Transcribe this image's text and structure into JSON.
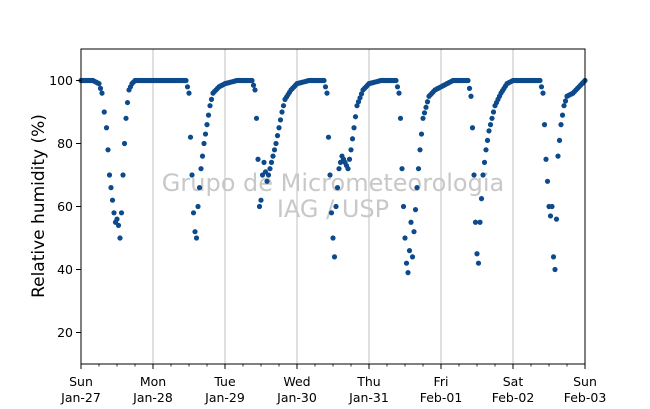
{
  "chart_data": {
    "type": "scatter",
    "title": "",
    "xlabel": "",
    "ylabel": "Relative humidity (%)",
    "ylim": [
      10,
      110
    ],
    "yticks": [
      20,
      40,
      60,
      80,
      100
    ],
    "xlim": [
      "2019-01-27 00:00",
      "2019-02-03 00:00"
    ],
    "xticks": [
      {
        "day": "Sun",
        "date": "Jan-27"
      },
      {
        "day": "Mon",
        "date": "Jan-28"
      },
      {
        "day": "Tue",
        "date": "Jan-29"
      },
      {
        "day": "Wed",
        "date": "Jan-30"
      },
      {
        "day": "Thu",
        "date": "Jan-31"
      },
      {
        "day": "Fri",
        "date": "Feb-01"
      },
      {
        "day": "Sat",
        "date": "Feb-02"
      },
      {
        "day": "Sun",
        "date": "Feb-03"
      }
    ],
    "grid": "vertical lines at day ticks",
    "marker_color": "#0d4a8c",
    "watermark": [
      "Grupo de Micrometeorologia",
      "IAG / USP"
    ],
    "series": [
      {
        "points": [
          [
            "2019-01-27 00:00",
            100
          ],
          [
            "2019-01-27 02:00",
            100
          ],
          [
            "2019-01-27 04:00",
            100
          ],
          [
            "2019-01-27 06:00",
            99
          ],
          [
            "2019-01-27 07:00",
            96
          ],
          [
            "2019-01-27 07:45",
            90
          ],
          [
            "2019-01-27 08:30",
            85
          ],
          [
            "2019-01-27 09:00",
            78
          ],
          [
            "2019-01-27 09:30",
            70
          ],
          [
            "2019-01-27 10:00",
            66
          ],
          [
            "2019-01-27 10:30",
            62
          ],
          [
            "2019-01-27 11:00",
            58
          ],
          [
            "2019-01-27 11:30",
            55
          ],
          [
            "2019-01-27 12:00",
            56
          ],
          [
            "2019-01-27 12:30",
            54
          ],
          [
            "2019-01-27 13:00",
            50
          ],
          [
            "2019-01-27 13:30",
            58
          ],
          [
            "2019-01-27 14:00",
            70
          ],
          [
            "2019-01-27 14:30",
            80
          ],
          [
            "2019-01-27 15:00",
            88
          ],
          [
            "2019-01-27 15:30",
            93
          ],
          [
            "2019-01-27 16:00",
            97
          ],
          [
            "2019-01-27 17:00",
            99
          ],
          [
            "2019-01-27 18:00",
            100
          ],
          [
            "2019-01-27 21:00",
            100
          ],
          [
            "2019-01-28 00:00",
            100
          ],
          [
            "2019-01-28 04:00",
            100
          ],
          [
            "2019-01-28 08:00",
            100
          ],
          [
            "2019-01-28 11:00",
            100
          ],
          [
            "2019-01-28 12:00",
            96
          ],
          [
            "2019-01-28 12:30",
            82
          ],
          [
            "2019-01-28 13:00",
            70
          ],
          [
            "2019-01-28 13:30",
            58
          ],
          [
            "2019-01-28 14:00",
            52
          ],
          [
            "2019-01-28 14:30",
            50
          ],
          [
            "2019-01-28 15:00",
            60
          ],
          [
            "2019-01-28 15:30",
            66
          ],
          [
            "2019-01-28 16:00",
            72
          ],
          [
            "2019-01-28 17:00",
            80
          ],
          [
            "2019-01-28 18:00",
            86
          ],
          [
            "2019-01-28 19:00",
            92
          ],
          [
            "2019-01-28 20:00",
            96
          ],
          [
            "2019-01-28 22:00",
            98
          ],
          [
            "2019-01-29 00:00",
            99
          ],
          [
            "2019-01-29 04:00",
            100
          ],
          [
            "2019-01-29 09:00",
            100
          ],
          [
            "2019-01-29 10:00",
            97
          ],
          [
            "2019-01-29 10:30",
            88
          ],
          [
            "2019-01-29 11:00",
            75
          ],
          [
            "2019-01-29 11:30",
            60
          ],
          [
            "2019-01-29 12:00",
            62
          ],
          [
            "2019-01-29 12:30",
            70
          ],
          [
            "2019-01-29 13:00",
            74
          ],
          [
            "2019-01-29 14:00",
            68
          ],
          [
            "2019-01-29 15:00",
            72
          ],
          [
            "2019-01-29 16:00",
            76
          ],
          [
            "2019-01-29 17:00",
            80
          ],
          [
            "2019-01-29 18:00",
            85
          ],
          [
            "2019-01-29 19:00",
            90
          ],
          [
            "2019-01-29 20:00",
            94
          ],
          [
            "2019-01-29 22:00",
            97
          ],
          [
            "2019-01-30 00:00",
            99
          ],
          [
            "2019-01-30 04:00",
            100
          ],
          [
            "2019-01-30 09:00",
            100
          ],
          [
            "2019-01-30 10:00",
            96
          ],
          [
            "2019-01-30 10:30",
            82
          ],
          [
            "2019-01-30 11:00",
            70
          ],
          [
            "2019-01-30 11:30",
            58
          ],
          [
            "2019-01-30 12:00",
            50
          ],
          [
            "2019-01-30 12:30",
            44
          ],
          [
            "2019-01-30 13:00",
            60
          ],
          [
            "2019-01-30 14:00",
            72
          ],
          [
            "2019-01-30 15:00",
            76
          ],
          [
            "2019-01-30 16:00",
            74
          ],
          [
            "2019-01-30 17:00",
            72
          ],
          [
            "2019-01-30 18:00",
            78
          ],
          [
            "2019-01-30 19:00",
            85
          ],
          [
            "2019-01-30 20:00",
            92
          ],
          [
            "2019-01-30 22:00",
            97
          ],
          [
            "2019-01-31 00:00",
            99
          ],
          [
            "2019-01-31 04:00",
            100
          ],
          [
            "2019-01-31 09:00",
            100
          ],
          [
            "2019-01-31 10:00",
            96
          ],
          [
            "2019-01-31 10:30",
            88
          ],
          [
            "2019-01-31 11:00",
            72
          ],
          [
            "2019-01-31 11:30",
            60
          ],
          [
            "2019-01-31 12:00",
            50
          ],
          [
            "2019-01-31 12:30",
            42
          ],
          [
            "2019-01-31 13:00",
            39
          ],
          [
            "2019-01-31 13:30",
            46
          ],
          [
            "2019-01-31 14:00",
            55
          ],
          [
            "2019-01-31 14:30",
            44
          ],
          [
            "2019-01-31 15:00",
            52
          ],
          [
            "2019-01-31 16:00",
            66
          ],
          [
            "2019-01-31 17:00",
            78
          ],
          [
            "2019-01-31 18:00",
            88
          ],
          [
            "2019-01-31 20:00",
            95
          ],
          [
            "2019-01-31 22:00",
            97
          ],
          [
            "2019-02-01 00:00",
            98
          ],
          [
            "2019-02-01 04:00",
            100
          ],
          [
            "2019-02-01 09:00",
            100
          ],
          [
            "2019-02-01 10:00",
            95
          ],
          [
            "2019-02-01 10:30",
            85
          ],
          [
            "2019-02-01 11:00",
            70
          ],
          [
            "2019-02-01 11:30",
            55
          ],
          [
            "2019-02-01 12:00",
            45
          ],
          [
            "2019-02-01 12:30",
            42
          ],
          [
            "2019-02-01 13:00",
            55
          ],
          [
            "2019-02-01 14:00",
            70
          ],
          [
            "2019-02-01 15:00",
            78
          ],
          [
            "2019-02-01 16:00",
            84
          ],
          [
            "2019-02-01 17:00",
            88
          ],
          [
            "2019-02-01 18:00",
            92
          ],
          [
            "2019-02-01 20:00",
            96
          ],
          [
            "2019-02-01 22:00",
            99
          ],
          [
            "2019-02-02 00:00",
            100
          ],
          [
            "2019-02-02 04:00",
            100
          ],
          [
            "2019-02-02 09:00",
            100
          ],
          [
            "2019-02-02 10:00",
            96
          ],
          [
            "2019-02-02 10:30",
            86
          ],
          [
            "2019-02-02 11:00",
            75
          ],
          [
            "2019-02-02 11:30",
            68
          ],
          [
            "2019-02-02 12:00",
            60
          ],
          [
            "2019-02-02 12:30",
            57
          ],
          [
            "2019-02-02 13:00",
            60
          ],
          [
            "2019-02-02 13:30",
            44
          ],
          [
            "2019-02-02 14:00",
            40
          ],
          [
            "2019-02-02 14:30",
            56
          ],
          [
            "2019-02-02 15:00",
            76
          ],
          [
            "2019-02-02 16:00",
            86
          ],
          [
            "2019-02-02 17:00",
            92
          ],
          [
            "2019-02-02 18:00",
            95
          ],
          [
            "2019-02-02 20:00",
            96
          ],
          [
            "2019-02-02 22:00",
            98
          ],
          [
            "2019-02-03 00:00",
            100
          ]
        ]
      }
    ]
  }
}
